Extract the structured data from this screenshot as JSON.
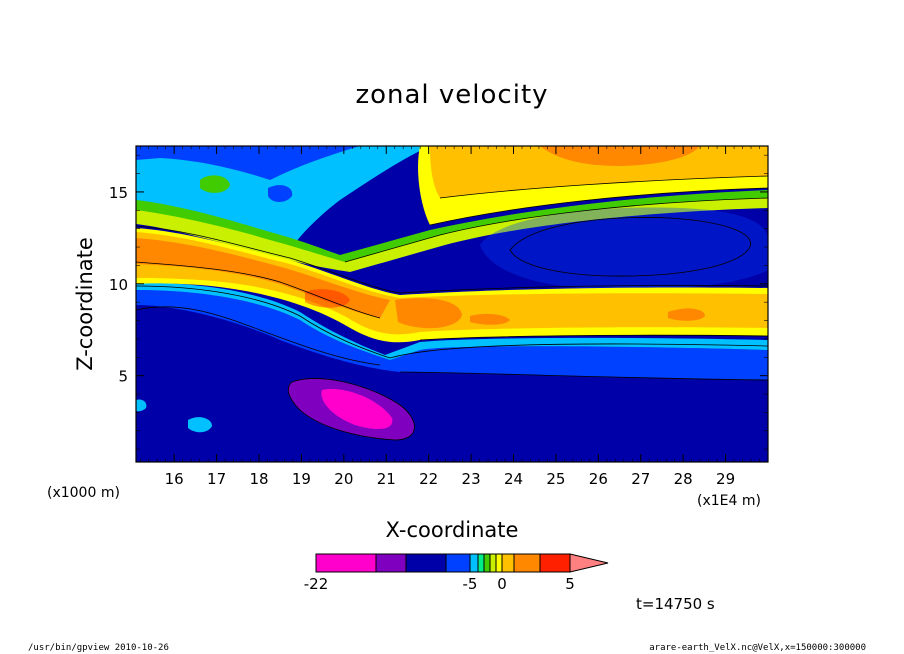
{
  "chart_data": {
    "type": "heatmap",
    "title": "zonal velocity",
    "xlabel": "X-coordinate",
    "ylabel": "Z-coordinate",
    "x_unit_left": "(x1000 m)",
    "x_unit_right": "(x1E4 m)",
    "xlim": [
      15.1,
      30.0
    ],
    "ylim": [
      0.3,
      17.5
    ],
    "x_ticks": [
      16,
      17,
      18,
      19,
      20,
      21,
      22,
      23,
      24,
      25,
      26,
      27,
      28,
      29
    ],
    "y_ticks": [
      5,
      10,
      15
    ],
    "colorbar": {
      "levels": [
        -22,
        -16,
        -12,
        -8,
        -5,
        -4,
        -3,
        -2,
        -1,
        0,
        1,
        2,
        5,
        8,
        11,
        14
      ],
      "labels": [
        "-22",
        "-5",
        "0",
        "5"
      ],
      "colors": [
        "#ff00cc",
        "#8000c0",
        "#0000a8",
        "#0040ff",
        "#00c0ff",
        "#00ee88",
        "#40cc00",
        "#c8f000",
        "#ffff00",
        "#ffc000",
        "#ff8800",
        "#ff2000",
        "#ff8080"
      ]
    },
    "time_label": "t=14750 s"
  },
  "footer": {
    "left": "/usr/bin/gpview   2010-10-26",
    "right": "arare-earth_VelX.nc@VelX,x=150000:300000"
  }
}
